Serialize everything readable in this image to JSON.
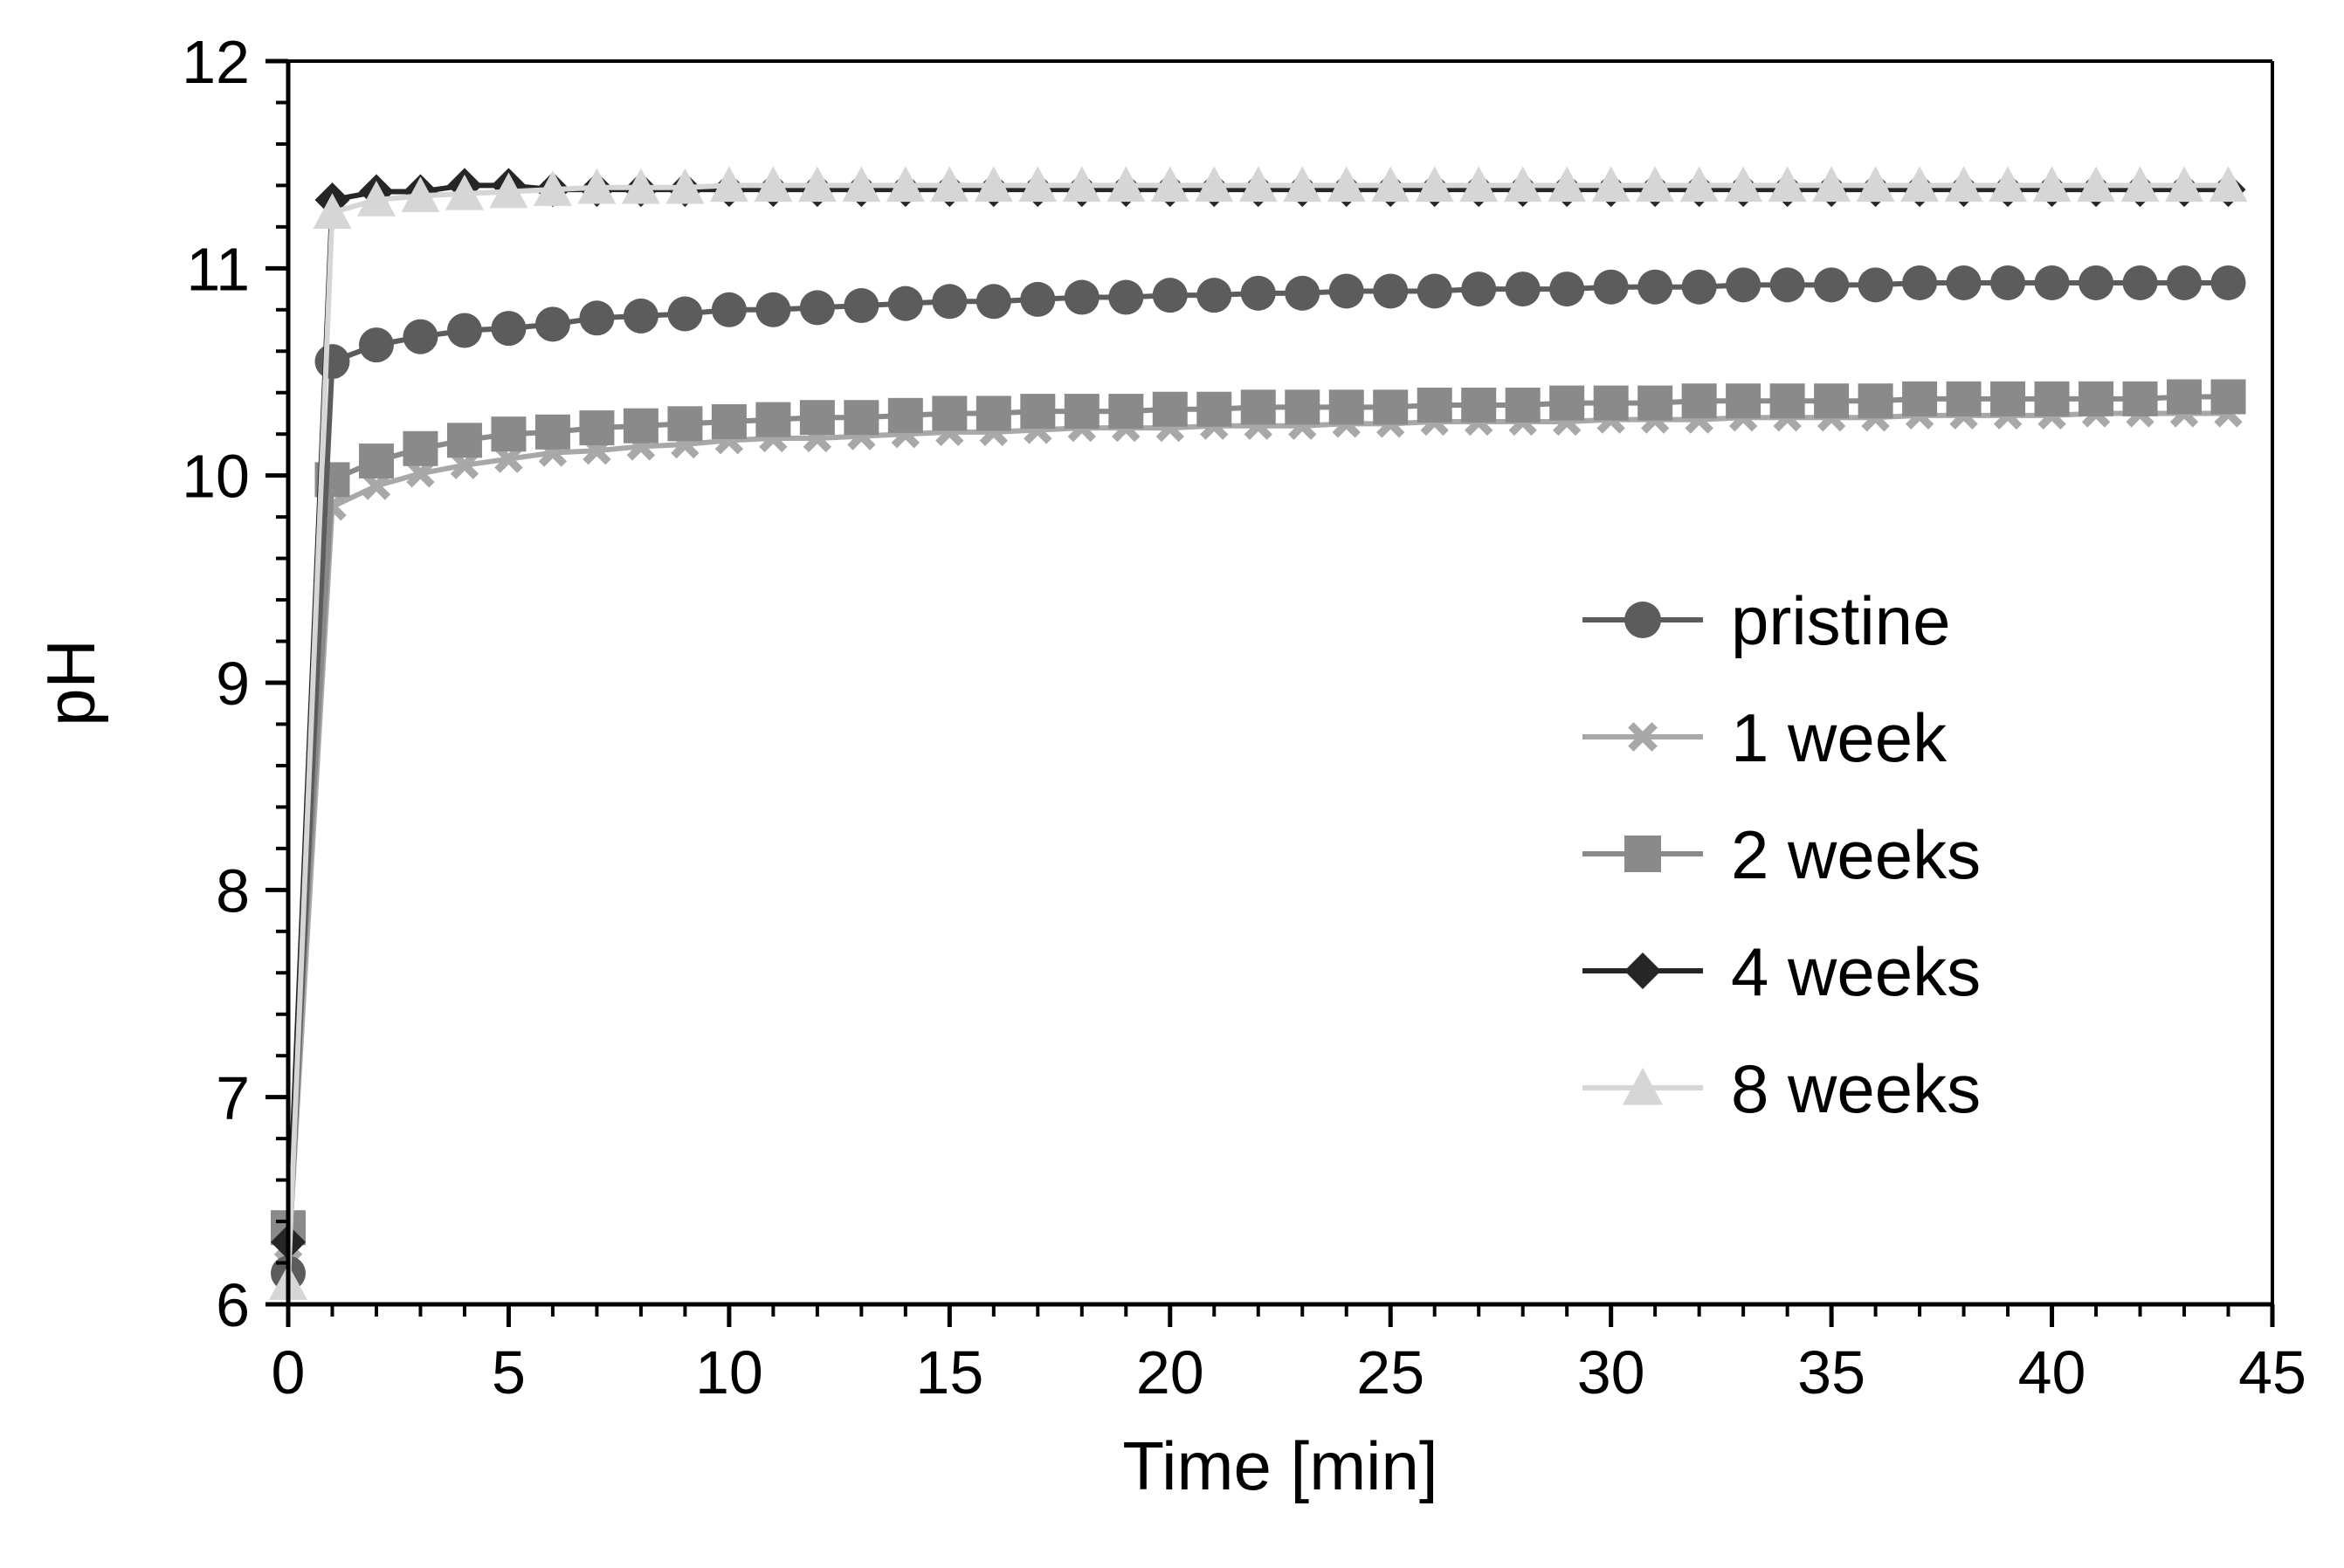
{
  "chart_data": {
    "type": "line",
    "title": "",
    "xlabel": "Time [min]",
    "ylabel": "pH",
    "xlim": [
      0,
      45
    ],
    "ylim": [
      6,
      12
    ],
    "xticks": [
      0,
      5,
      10,
      15,
      20,
      25,
      30,
      35,
      40,
      45
    ],
    "yticks": [
      6,
      7,
      8,
      9,
      10,
      11,
      12
    ],
    "x_minor_step": 1,
    "y_minor_step": 0.2,
    "grid": false,
    "legend_position": "right",
    "x": [
      0,
      1,
      2,
      3,
      4,
      5,
      6,
      7,
      8,
      9,
      10,
      11,
      12,
      13,
      14,
      15,
      16,
      17,
      18,
      19,
      20,
      21,
      22,
      23,
      24,
      25,
      26,
      27,
      28,
      29,
      30,
      31,
      32,
      33,
      34,
      35,
      36,
      37,
      38,
      39,
      40,
      41,
      42,
      43,
      44
    ],
    "series": [
      {
        "name": "1 week",
        "marker": "x",
        "color": "#a8a8a8",
        "values": [
          6.2,
          9.85,
          9.95,
          10.01,
          10.05,
          10.08,
          10.11,
          10.12,
          10.14,
          10.15,
          10.17,
          10.18,
          10.18,
          10.19,
          10.2,
          10.21,
          10.21,
          10.22,
          10.23,
          10.23,
          10.23,
          10.24,
          10.24,
          10.24,
          10.25,
          10.25,
          10.26,
          10.26,
          10.26,
          10.26,
          10.27,
          10.27,
          10.27,
          10.28,
          10.28,
          10.28,
          10.28,
          10.29,
          10.29,
          10.29,
          10.29,
          10.3,
          10.3,
          10.3,
          10.3
        ]
      },
      {
        "name": "2 weeks",
        "marker": "square",
        "color": "#8a8a8a",
        "values": [
          6.37,
          9.98,
          10.07,
          10.13,
          10.17,
          10.2,
          10.21,
          10.23,
          10.24,
          10.25,
          10.26,
          10.27,
          10.28,
          10.28,
          10.29,
          10.3,
          10.3,
          10.31,
          10.31,
          10.31,
          10.32,
          10.32,
          10.33,
          10.33,
          10.33,
          10.33,
          10.34,
          10.34,
          10.34,
          10.35,
          10.35,
          10.35,
          10.36,
          10.36,
          10.36,
          10.36,
          10.36,
          10.37,
          10.37,
          10.37,
          10.37,
          10.37,
          10.37,
          10.38,
          10.38
        ]
      },
      {
        "name": "pristine",
        "marker": "circle",
        "color": "#5c5c5c",
        "values": [
          6.15,
          10.55,
          10.63,
          10.67,
          10.7,
          10.71,
          10.73,
          10.76,
          10.77,
          10.78,
          10.8,
          10.8,
          10.81,
          10.82,
          10.83,
          10.84,
          10.84,
          10.85,
          10.86,
          10.86,
          10.87,
          10.87,
          10.88,
          10.88,
          10.89,
          10.89,
          10.89,
          10.9,
          10.9,
          10.9,
          10.91,
          10.91,
          10.91,
          10.92,
          10.92,
          10.92,
          10.92,
          10.93,
          10.93,
          10.93,
          10.93,
          10.93,
          10.93,
          10.93,
          10.93
        ]
      },
      {
        "name": "4 weeks",
        "marker": "diamond",
        "color": "#262626",
        "values": [
          6.3,
          11.33,
          11.37,
          11.37,
          11.4,
          11.4,
          11.38,
          11.38,
          11.38,
          11.38,
          11.38,
          11.38,
          11.38,
          11.38,
          11.38,
          11.38,
          11.38,
          11.38,
          11.38,
          11.38,
          11.38,
          11.38,
          11.38,
          11.38,
          11.38,
          11.38,
          11.38,
          11.38,
          11.38,
          11.38,
          11.38,
          11.38,
          11.38,
          11.38,
          11.38,
          11.38,
          11.38,
          11.38,
          11.38,
          11.38,
          11.38,
          11.38,
          11.38,
          11.38,
          11.38
        ]
      },
      {
        "name": "8 weeks",
        "marker": "triangle",
        "color": "#d6d6d6",
        "values": [
          6.1,
          11.27,
          11.33,
          11.35,
          11.36,
          11.37,
          11.38,
          11.39,
          11.39,
          11.39,
          11.4,
          11.4,
          11.4,
          11.4,
          11.4,
          11.4,
          11.4,
          11.4,
          11.4,
          11.4,
          11.4,
          11.4,
          11.4,
          11.4,
          11.4,
          11.4,
          11.4,
          11.4,
          11.4,
          11.4,
          11.4,
          11.4,
          11.4,
          11.4,
          11.4,
          11.4,
          11.4,
          11.4,
          11.4,
          11.4,
          11.4,
          11.4,
          11.4,
          11.4,
          11.4
        ]
      }
    ],
    "legend_order": [
      "pristine",
      "1 week",
      "2 weeks",
      "4 weeks",
      "8 weeks"
    ]
  }
}
